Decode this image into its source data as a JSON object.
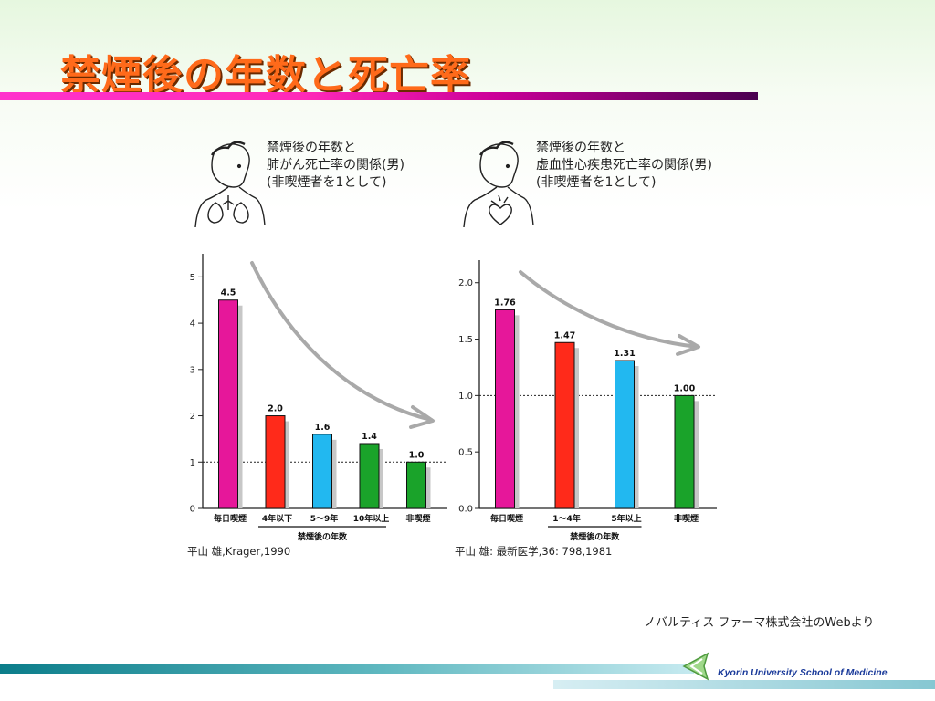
{
  "slide": {
    "title": "禁煙後の年数と死亡率",
    "credit": "ノバルティス ファーマ株式会社のWebより",
    "school": "Kyorin University School of Medicine"
  },
  "colors": {
    "magenta": "#e6179a",
    "red": "#ff2a1a",
    "cyan": "#22b8f0",
    "green": "#1aa32a",
    "bar_shadow": "#c7c7c7",
    "arrow": "#a9a9a9",
    "axis": "#222222"
  },
  "chart_data": [
    {
      "type": "bar",
      "title_lines": [
        "禁煙後の年数と",
        "肺がん死亡率の関係(男)",
        "(非喫煙者を1として)"
      ],
      "categories": [
        "毎日喫煙",
        "4年以下",
        "5〜9年",
        "10年以上",
        "非喫煙"
      ],
      "values": [
        4.5,
        2.0,
        1.6,
        1.4,
        1.0
      ],
      "value_labels": [
        "4.5",
        "2.0",
        "1.6",
        "1.4",
        "1.0"
      ],
      "bar_colors": [
        "#e6179a",
        "#ff2a1a",
        "#22b8f0",
        "#1aa32a",
        "#1aa32a"
      ],
      "ylim": [
        0,
        5.5
      ],
      "yticks": [
        0,
        1,
        2,
        3,
        4,
        5
      ],
      "ytick_labels": [
        "0",
        "1",
        "2",
        "3",
        "4",
        "5"
      ],
      "reference_line": 1.0,
      "group_label": "禁煙後の年数",
      "group_span": [
        1,
        3
      ],
      "source": "平山 雄,Krager,1990",
      "legend": "none",
      "grid": false
    },
    {
      "type": "bar",
      "title_lines": [
        "禁煙後の年数と",
        "虚血性心疾患死亡率の関係(男)",
        "(非喫煙者を1として)"
      ],
      "categories": [
        "毎日喫煙",
        "1〜4年",
        "5年以上",
        "非喫煙"
      ],
      "values": [
        1.76,
        1.47,
        1.31,
        1.0
      ],
      "value_labels": [
        "1.76",
        "1.47",
        "1.31",
        "1.00"
      ],
      "bar_colors": [
        "#e6179a",
        "#ff2a1a",
        "#22b8f0",
        "#1aa32a"
      ],
      "ylim": [
        0,
        2.2
      ],
      "yticks": [
        0,
        0.5,
        1.0,
        1.5,
        2.0
      ],
      "ytick_labels": [
        "0.0",
        "0.5",
        "1.0",
        "1.5",
        "2.0"
      ],
      "reference_line": 1.0,
      "group_label": "禁煙後の年数",
      "group_span": [
        1,
        2
      ],
      "source": "平山 雄: 最新医学,36: 798,1981",
      "legend": "none",
      "grid": false
    }
  ]
}
